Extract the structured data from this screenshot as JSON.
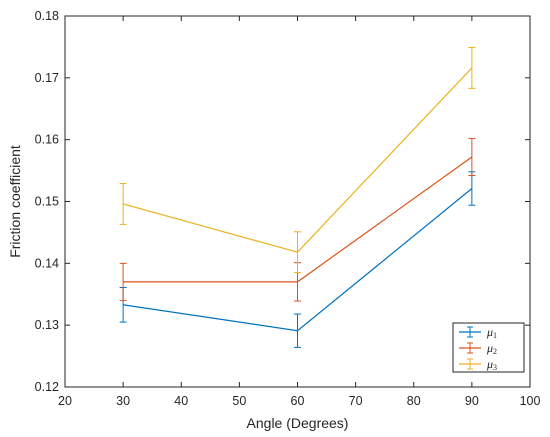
{
  "chart_data": {
    "type": "line",
    "title": "",
    "xlabel": "Angle (Degrees)",
    "ylabel": "Friction coefficient",
    "xlim": [
      20,
      100
    ],
    "ylim": [
      0.12,
      0.18
    ],
    "xticks": [
      "20",
      "30",
      "40",
      "50",
      "60",
      "70",
      "80",
      "90",
      "100"
    ],
    "yticks": [
      "0.12",
      "0.13",
      "0.14",
      "0.15",
      "0.16",
      "0.17",
      "0.18"
    ],
    "x": [
      30,
      60,
      90
    ],
    "grid": false,
    "legend_position": "bottom-right",
    "series": [
      {
        "name": "μ1",
        "color": "#0072BD",
        "values": [
          0.1333,
          0.1291,
          0.1521
        ],
        "errors": [
          0.0028,
          0.0027,
          0.0027
        ]
      },
      {
        "name": "μ2",
        "color": "#D95319",
        "values": [
          0.137,
          0.137,
          0.1572
        ],
        "errors": [
          0.003,
          0.0031,
          0.003
        ]
      },
      {
        "name": "μ3",
        "color": "#EDB120",
        "values": [
          0.1496,
          0.1418,
          0.1716
        ],
        "errors": [
          0.0033,
          0.0033,
          0.0033
        ]
      }
    ]
  }
}
